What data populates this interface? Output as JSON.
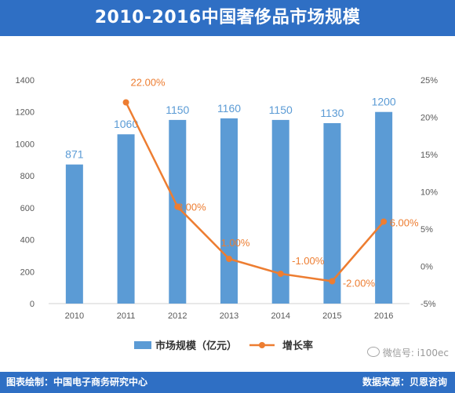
{
  "title": "2010-2016中国奢侈品市场规模",
  "footer": {
    "left": "图表绘制：中国电子商务研究中心",
    "right": "数据来源：贝恩咨询"
  },
  "watermark": {
    "text": "微信号: i100ec",
    "icon": "wechat-icon"
  },
  "colors": {
    "header": "#2f6fc4",
    "bar": "#5b9bd5",
    "line": "#ed7d31",
    "value_label": "#5b9bd5",
    "growth_label": "#ed7d31"
  },
  "chart_data": {
    "type": "bar+line",
    "categories": [
      "2010",
      "2011",
      "2012",
      "2013",
      "2014",
      "2015",
      "2016"
    ],
    "series": [
      {
        "name": "市场规模（亿元）",
        "type": "bar",
        "axis": "left",
        "values": [
          871,
          1060,
          1150,
          1160,
          1150,
          1130,
          1200
        ],
        "labels": [
          "871",
          "1060",
          "1150",
          "1160",
          "1150",
          "1130",
          "1200"
        ]
      },
      {
        "name": "增长率",
        "type": "line",
        "axis": "right",
        "x": [
          "2011",
          "2012",
          "2013",
          "2014",
          "2015",
          "2016"
        ],
        "values": [
          22.0,
          8.0,
          1.0,
          -1.0,
          -2.0,
          6.0
        ],
        "labels": [
          "22.00%",
          "8.00%",
          "1.00%",
          "-1.00%",
          "-2.00%",
          "6.00%"
        ]
      }
    ],
    "y_left": {
      "min": 0,
      "max": 1400,
      "ticks": [
        "0",
        "200",
        "400",
        "600",
        "800",
        "1000",
        "1200",
        "1400"
      ]
    },
    "y_right": {
      "min": -5,
      "max": 25,
      "ticks": [
        "-5%",
        "0%",
        "5%",
        "10%",
        "15%",
        "20%",
        "25%"
      ]
    },
    "grid": false,
    "legend": "bottom"
  }
}
